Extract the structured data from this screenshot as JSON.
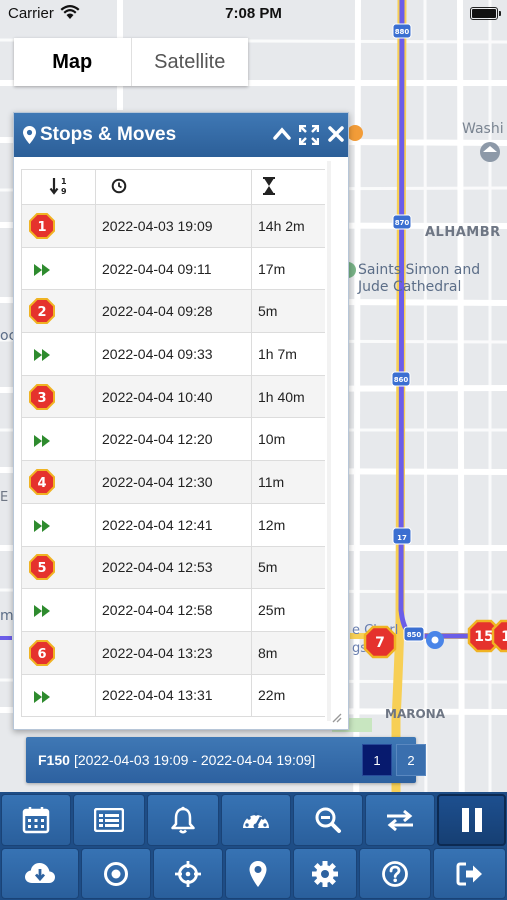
{
  "status_bar": {
    "carrier": "Carrier",
    "time": "7:08 PM"
  },
  "map": {
    "map_type_options": [
      "Map",
      "Satellite"
    ],
    "selected_map_type": "Map",
    "labels": {
      "place1": "Washi",
      "place2": "ALHAMBR",
      "church_line1": "Saints Simon and",
      "church_line2": "Jude Cathedral",
      "marona": "MARONA",
      "charles": "e Charl",
      "am": "gs AM",
      "frag_left1": "oc",
      "frag_left2": "E",
      "frag_left3": "m",
      "shield_880": "880",
      "shield_870": "870",
      "shield_860": "860",
      "shield_17": "17",
      "shield_850": "850"
    },
    "markers": [
      "7",
      "15",
      "1"
    ],
    "colors": {
      "route": "#6b5de8",
      "road_major": "#f7cf55",
      "road_minor": "#ffffff",
      "land": "#e7e9ec"
    }
  },
  "panel": {
    "title": "Stops & Moves",
    "icons": [
      "map-pin-icon",
      "collapse-icon",
      "fullscreen-icon",
      "close-icon"
    ],
    "columns": [
      "sort-numeric-icon",
      "clock-icon",
      "hourglass-icon"
    ],
    "rows": [
      {
        "type": "stop",
        "number": "1",
        "time": "2022-04-03 19:09",
        "duration": "14h 2m"
      },
      {
        "type": "move",
        "time": "2022-04-04 09:11",
        "duration": "17m"
      },
      {
        "type": "stop",
        "number": "2",
        "time": "2022-04-04 09:28",
        "duration": "5m"
      },
      {
        "type": "move",
        "time": "2022-04-04 09:33",
        "duration": "1h 7m"
      },
      {
        "type": "stop",
        "number": "3",
        "time": "2022-04-04 10:40",
        "duration": "1h 40m"
      },
      {
        "type": "move",
        "time": "2022-04-04 12:20",
        "duration": "10m"
      },
      {
        "type": "stop",
        "number": "4",
        "time": "2022-04-04 12:30",
        "duration": "11m"
      },
      {
        "type": "move",
        "time": "2022-04-04 12:41",
        "duration": "12m"
      },
      {
        "type": "stop",
        "number": "5",
        "time": "2022-04-04 12:53",
        "duration": "5m"
      },
      {
        "type": "move",
        "time": "2022-04-04 12:58",
        "duration": "25m"
      },
      {
        "type": "stop",
        "number": "6",
        "time": "2022-04-04 13:23",
        "duration": "8m"
      },
      {
        "type": "move",
        "time": "2022-04-04 13:31",
        "duration": "22m"
      }
    ]
  },
  "vehicle_bar": {
    "vehicle": "F150",
    "range": "[2022-04-03 19:09 - 2022-04-04 19:09]",
    "pages": [
      "1",
      "2"
    ],
    "current_page": "1"
  },
  "toolbar": {
    "row1": [
      "calendar-icon",
      "list-icon",
      "bell-icon",
      "speedometer-icon",
      "zoom-out-icon",
      "swap-icon",
      "pause-icon"
    ],
    "row2": [
      "cloud-download-icon",
      "target-icon",
      "crosshair-icon",
      "location-pin-icon",
      "gear-icon",
      "help-icon",
      "logout-icon"
    ],
    "active": "pause-icon"
  },
  "colors": {
    "header_blue": "#2f65a0",
    "stop_badge": "#e5322d",
    "badge_ring": "#f0b323",
    "move_arrow": "#2e8b2e"
  }
}
